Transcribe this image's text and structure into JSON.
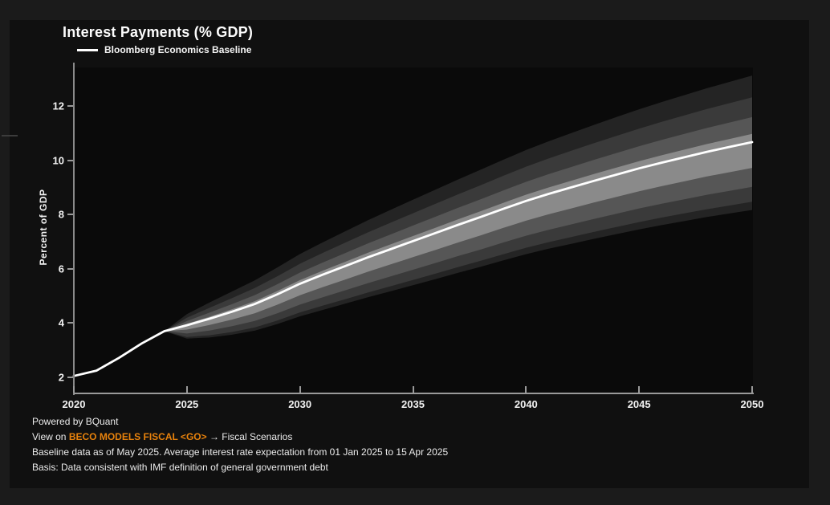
{
  "page": {
    "background": "#1b1b1b",
    "card_background": "#101010",
    "plot_background": "#0a0a0a",
    "axis_color": "#9a9a9a",
    "text_color": "#f2f2f2"
  },
  "header": {
    "title": "Interest Payments (% GDP)",
    "legend": [
      {
        "label": "Bloomberg Economics Baseline",
        "swatch_color": "#ffffff"
      }
    ]
  },
  "chart_data": {
    "type": "line",
    "title": "Interest Payments (% GDP)",
    "xlabel": "",
    "ylabel": "Percent of GDP",
    "xlim": [
      2020,
      2050
    ],
    "ylim": [
      1.4,
      13.6
    ],
    "x_ticks": [
      2020,
      2025,
      2030,
      2035,
      2040,
      2045,
      2050
    ],
    "y_ticks": [
      2,
      4,
      6,
      8,
      10,
      12
    ],
    "grid": false,
    "legend_position": "top-left",
    "series": [
      {
        "name": "Bloomberg Economics Baseline",
        "color": "#ffffff",
        "x": [
          2020,
          2021,
          2022,
          2023,
          2024,
          2025,
          2026,
          2027,
          2028,
          2029,
          2030,
          2031,
          2032,
          2033,
          2034,
          2035,
          2036,
          2037,
          2038,
          2039,
          2040,
          2041,
          2042,
          2043,
          2044,
          2045,
          2046,
          2047,
          2048,
          2049,
          2050
        ],
        "values": [
          2.05,
          2.25,
          2.72,
          3.25,
          3.7,
          3.92,
          4.16,
          4.42,
          4.7,
          5.06,
          5.45,
          5.78,
          6.1,
          6.42,
          6.72,
          7.02,
          7.32,
          7.62,
          7.91,
          8.21,
          8.5,
          8.76,
          9.0,
          9.24,
          9.47,
          9.7,
          9.91,
          10.11,
          10.31,
          10.49,
          10.67
        ]
      }
    ],
    "uncertainty_fan": {
      "description": "fan-chart confidence bands around baseline, widening from 2024 to 2050",
      "start_year": 2024,
      "end_year": 2050,
      "envelope_2050": {
        "top": 13.1,
        "bottom": 8.2
      },
      "bands_outer_to_inner": [
        {
          "upper_offset_2050": 2.45,
          "lower_offset_2050": 2.5,
          "upper_exp": 0.55,
          "lower_exp": 0.5,
          "color": "#242424"
        },
        {
          "upper_offset_2050": 1.65,
          "lower_offset_2050": 2.2,
          "upper_exp": 0.55,
          "lower_exp": 0.5,
          "color": "#3a3a3a"
        },
        {
          "upper_offset_2050": 0.92,
          "lower_offset_2050": 1.65,
          "upper_exp": 0.55,
          "lower_exp": 0.52,
          "color": "#565656"
        },
        {
          "upper_offset_2050": 0.3,
          "lower_offset_2050": 0.95,
          "upper_exp": 0.55,
          "lower_exp": 0.55,
          "color": "#8a8a8a"
        }
      ]
    }
  },
  "footer": {
    "line1": "Powered by BQuant",
    "line2_prefix": "View on ",
    "line2_link": "BECO MODELS FISCAL <GO>",
    "line2_suffix": " → Fiscal Scenarios",
    "line3": "Baseline data as of May 2025. Average interest rate expectation from 01 Jan 2025 to 15 Apr 2025",
    "line4": "Basis: Data consistent with IMF definition of general government debt",
    "link_color": "#e8820c"
  }
}
